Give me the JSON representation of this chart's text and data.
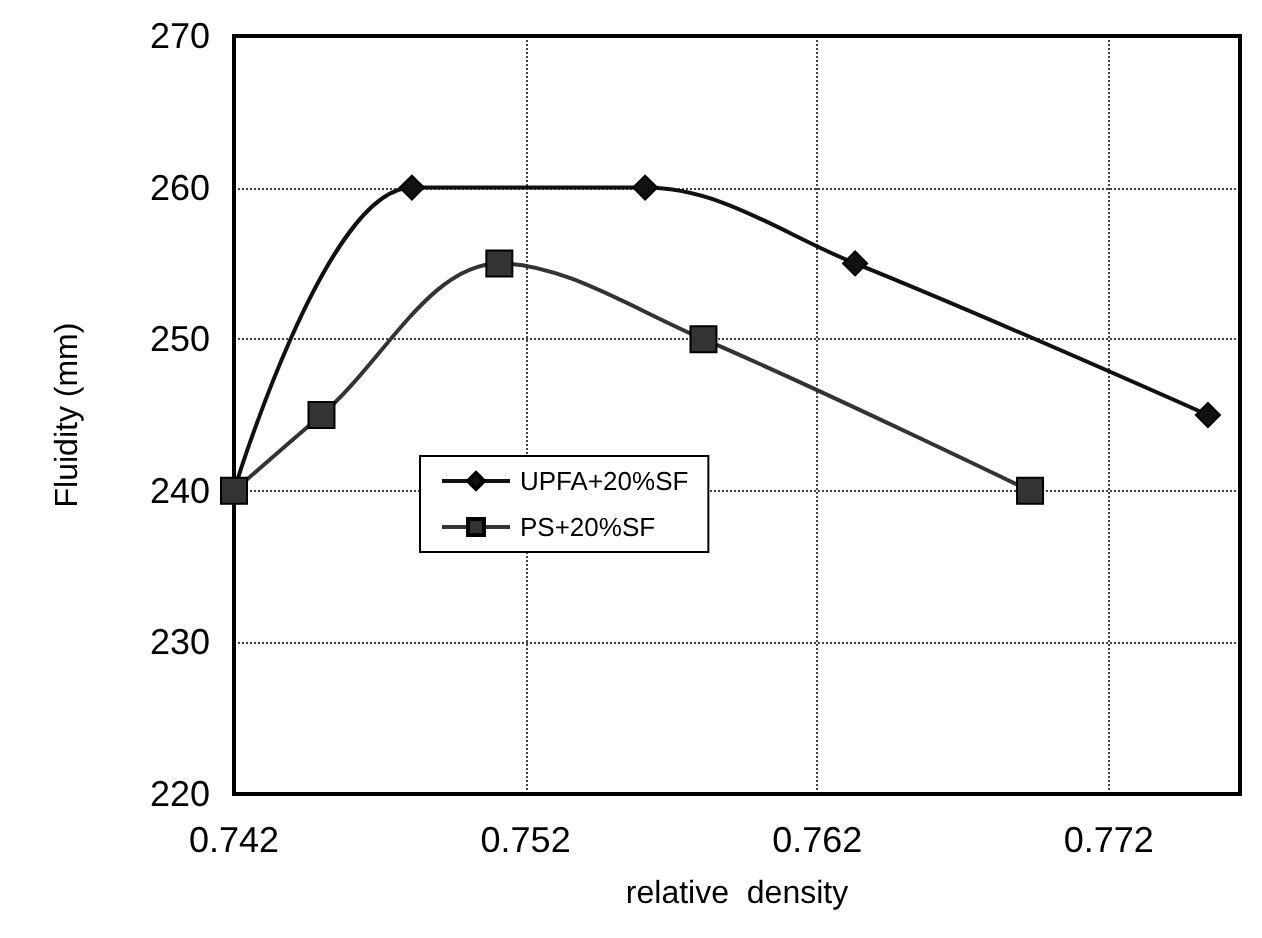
{
  "chart_data": {
    "type": "line",
    "xlabel": "relative  density",
    "ylabel": "Fluidity (mm)",
    "xlim": [
      0.742,
      0.7765
    ],
    "xticks": [
      0.742,
      0.752,
      0.762,
      0.772
    ],
    "ylim": [
      220,
      270
    ],
    "yticks": [
      220,
      230,
      240,
      250,
      260,
      270
    ],
    "grid": true,
    "legend": "left",
    "line_style": "solid",
    "series": [
      {
        "name": "UPFA+20%SF",
        "color": "#111111",
        "marker": "diamond",
        "x": [
          0.742,
          0.7481,
          0.7561,
          0.7633,
          0.7754
        ],
        "values": [
          240,
          260,
          260,
          255,
          245
        ]
      },
      {
        "name": "PS+20%SF",
        "color": "#333333",
        "marker": "square",
        "x": [
          0.742,
          0.745,
          0.7511,
          0.7581,
          0.7693
        ],
        "values": [
          240,
          245,
          255,
          250,
          240
        ]
      }
    ]
  }
}
